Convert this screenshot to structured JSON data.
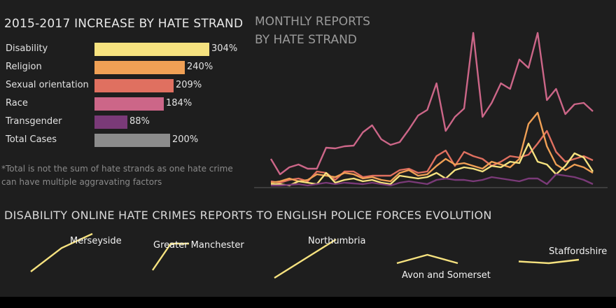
{
  "left_panel": {
    "title": "2015-2017 INCREASE BY HATE STRAND",
    "footnote": "*Total is not the sum of hate strands as one hate crime can have multiple aggravating factors"
  },
  "right_panel": {
    "title_line1": "MONTHLY REPORTS",
    "title_line2": "BY HATE STRAND"
  },
  "bottom_panel": {
    "title": "DISABILITY ONLINE HATE CRIMES REPORTS TO ENGLISH POLICE FORCES EVOLUTION"
  },
  "colors": {
    "background": "#1e1e1e",
    "disability": "#f6e27f",
    "religion": "#f0a055",
    "sexual_orientation": "#e07060",
    "race": "#cc6688",
    "transgender": "#7a3a78",
    "total": "#8c8c8c"
  },
  "chart_data": [
    {
      "type": "bar",
      "orientation": "horizontal",
      "title": "2015-2017 INCREASE BY HATE STRAND",
      "categories": [
        "Disability",
        "Religion",
        "Sexual orientation",
        "Race",
        "Transgender",
        "Total Cases"
      ],
      "values": [
        304,
        240,
        209,
        184,
        88,
        200
      ],
      "value_labels": [
        "304%",
        "240%",
        "209%",
        "184%",
        "88%",
        "200%"
      ],
      "colors": [
        "#f6e27f",
        "#f0a055",
        "#e07060",
        "#cc6688",
        "#7a3a78",
        "#8c8c8c"
      ],
      "unit": "%"
    },
    {
      "type": "line",
      "title": "MONTHLY REPORTS BY HATE STRAND",
      "x": [
        1,
        2,
        3,
        4,
        5,
        6,
        7,
        8,
        9,
        10,
        11,
        12,
        13,
        14,
        15,
        16,
        17,
        18,
        19,
        20,
        21,
        22,
        23,
        24,
        25,
        26,
        27,
        28,
        29,
        30,
        31,
        32,
        33,
        34,
        35,
        36
      ],
      "ylim": [
        0,
        225
      ],
      "grid": false,
      "legend": "none",
      "series": [
        {
          "color": "#cc6688",
          "values": [
            40,
            18,
            28,
            32,
            26,
            26,
            56,
            55,
            58,
            59,
            78,
            88,
            68,
            60,
            64,
            82,
            102,
            110,
            148,
            80,
            100,
            112,
            220,
            100,
            120,
            148,
            140,
            182,
            170,
            220,
            124,
            140,
            104,
            118,
            120,
            108
          ]
        },
        {
          "color": "#e07060",
          "values": [
            8,
            6,
            10,
            12,
            8,
            22,
            20,
            10,
            22,
            22,
            14,
            16,
            16,
            16,
            24,
            26,
            20,
            22,
            44,
            52,
            30,
            50,
            44,
            40,
            30,
            36,
            44,
            42,
            46,
            62,
            80,
            50,
            36,
            40,
            44,
            38
          ]
        },
        {
          "color": "#f0a055",
          "values": [
            6,
            8,
            12,
            8,
            10,
            18,
            16,
            14,
            20,
            18,
            12,
            14,
            10,
            8,
            20,
            24,
            16,
            18,
            30,
            40,
            32,
            34,
            30,
            26,
            36,
            32,
            28,
            40,
            90,
            106,
            58,
            32,
            24,
            32,
            28,
            20
          ]
        },
        {
          "color": "#f6e27f",
          "values": [
            4,
            4,
            2,
            8,
            6,
            4,
            20,
            6,
            10,
            12,
            8,
            10,
            6,
            4,
            16,
            14,
            12,
            14,
            20,
            12,
            24,
            28,
            26,
            22,
            30,
            28,
            36,
            34,
            62,
            36,
            32,
            18,
            30,
            48,
            42,
            22
          ]
        },
        {
          "color": "#7a3a78",
          "values": [
            2,
            2,
            3,
            4,
            2,
            4,
            6,
            4,
            6,
            5,
            4,
            6,
            4,
            2,
            6,
            8,
            6,
            4,
            10,
            12,
            10,
            10,
            8,
            10,
            14,
            12,
            10,
            8,
            12,
            12,
            4,
            18,
            16,
            14,
            10,
            4
          ]
        }
      ]
    },
    {
      "type": "line",
      "title": "DISABILITY ONLINE HATE CRIMES REPORTS TO ENGLISH POLICE FORCES EVOLUTION",
      "series": [
        {
          "name": "Merseyside",
          "values": [
            2,
            12,
            18
          ]
        },
        {
          "name": "Greater Manchester",
          "values": [
            2,
            16,
            16
          ]
        },
        {
          "name": "Northumbria",
          "values": [
            2,
            10,
            18
          ]
        },
        {
          "name": "Avon and Somerset",
          "values": [
            10,
            12,
            10
          ]
        },
        {
          "name": "Staffordshire",
          "values": [
            10,
            9,
            11
          ]
        }
      ]
    }
  ]
}
